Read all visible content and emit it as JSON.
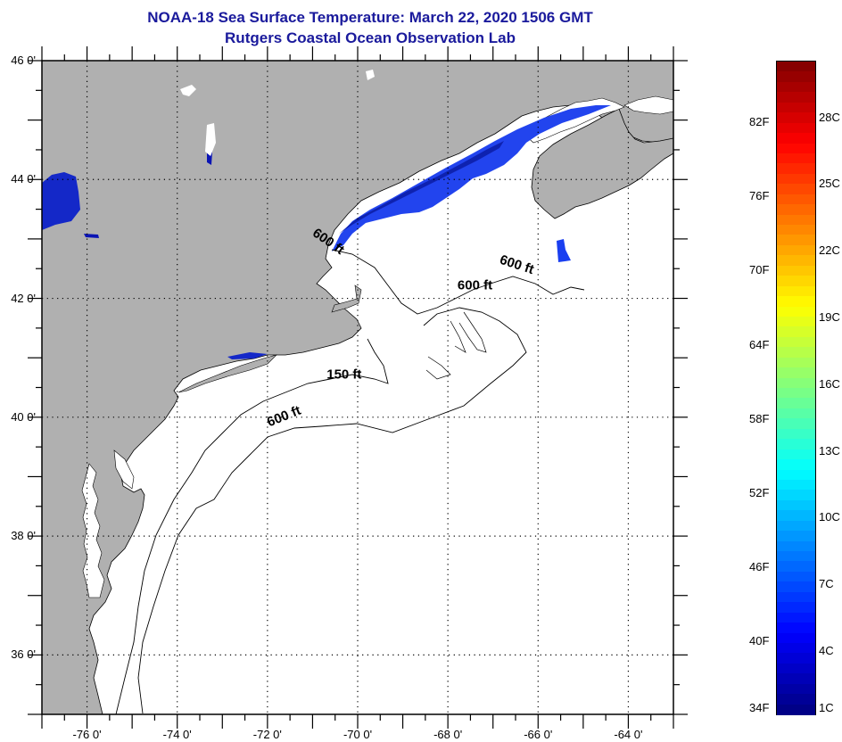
{
  "title": "NOAA-18 Sea Surface Temperature:  March 22, 2020 1506 GMT",
  "subtitle": "Rutgers Coastal Ocean Observation Lab",
  "map": {
    "extent": {
      "lon_min": -77,
      "lon_max": -63,
      "lat_min": 35,
      "lat_max": 46
    },
    "lat_labels": [
      {
        "lat": 46,
        "label": "46 0'"
      },
      {
        "lat": 44,
        "label": "44 0'"
      },
      {
        "lat": 42,
        "label": "42 0'"
      },
      {
        "lat": 40,
        "label": "40 0'"
      },
      {
        "lat": 38,
        "label": "38 0'"
      },
      {
        "lat": 36,
        "label": "36 0'"
      }
    ],
    "lon_labels": [
      {
        "lon": -76,
        "label": "-76 0'"
      },
      {
        "lon": -74,
        "label": "-74 0'"
      },
      {
        "lon": -72,
        "label": "-72 0'"
      },
      {
        "lon": -70,
        "label": "-70 0'"
      },
      {
        "lon": -68,
        "label": "-68 0'"
      },
      {
        "lon": -66,
        "label": "-66 0'"
      },
      {
        "lon": -64,
        "label": "-64 0'"
      }
    ],
    "contour_labels": [
      {
        "label": "600 ft",
        "lon": -70.7,
        "lat": 42.9
      },
      {
        "label": "600 ft",
        "lon": -66.5,
        "lat": 42.5
      },
      {
        "label": "600 ft",
        "lon": -67.4,
        "lat": 42.15
      },
      {
        "label": "150 ft",
        "lon": -70.3,
        "lat": 40.65
      },
      {
        "label": "600 ft",
        "lon": -71.6,
        "lat": 39.95
      }
    ],
    "colors": {
      "land": "#b0b0b0",
      "ocean_nodata": "#ffffff",
      "sst_cold": "#1a3ff0",
      "sst_deep": "#0a14b4",
      "title": "#1a1a9c"
    }
  },
  "colorbar": {
    "fahrenheit_labels": [
      "82F",
      "76F",
      "70F",
      "64F",
      "58F",
      "52F",
      "46F",
      "40F",
      "34F"
    ],
    "fahrenheit_values": [
      82,
      76,
      70,
      64,
      58,
      52,
      46,
      40,
      34
    ],
    "celsius_labels": [
      "28C",
      "25C",
      "22C",
      "19C",
      "16C",
      "13C",
      "10C",
      "7C",
      "4C",
      "1C"
    ],
    "celsius_values": [
      28,
      25,
      22,
      19,
      16,
      13,
      10,
      7,
      4,
      1
    ],
    "range_f": [
      34,
      87
    ]
  }
}
